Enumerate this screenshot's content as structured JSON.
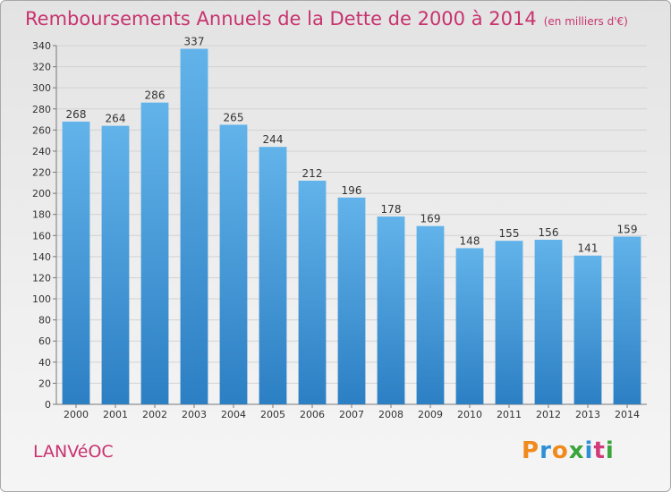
{
  "header": {
    "title": "Remboursements Annuels de la Dette de 2000 à 2014",
    "subtitle": "(en milliers d'€)"
  },
  "footer": {
    "commune": "LANVéOC",
    "logo": {
      "letters": [
        "P",
        "r",
        "o",
        "x",
        "i",
        "t",
        "i"
      ],
      "colors": [
        "#f08a1c",
        "#2e8fd6",
        "#f08a1c",
        "#3aa53a",
        "#2e8fd6",
        "#d23a7a",
        "#3aa53a"
      ]
    }
  },
  "colors": {
    "bar_top": "#62b3ea",
    "bar_bottom": "#2c7fc3",
    "title": "#c8326e"
  },
  "chart_data": {
    "type": "bar",
    "title": "Remboursements Annuels de la Dette de 2000 à 2014",
    "categories": [
      "2000",
      "2001",
      "2002",
      "2003",
      "2004",
      "2005",
      "2006",
      "2007",
      "2008",
      "2009",
      "2010",
      "2011",
      "2012",
      "2013",
      "2014"
    ],
    "values": [
      268,
      264,
      286,
      337,
      265,
      244,
      212,
      196,
      178,
      169,
      148,
      155,
      156,
      141,
      159
    ],
    "xlabel": "",
    "ylabel": "",
    "ylim": [
      0,
      340
    ],
    "yticks": [
      0,
      20,
      40,
      60,
      80,
      100,
      120,
      140,
      160,
      180,
      200,
      220,
      240,
      260,
      280,
      300,
      320,
      340
    ],
    "grid": true
  }
}
